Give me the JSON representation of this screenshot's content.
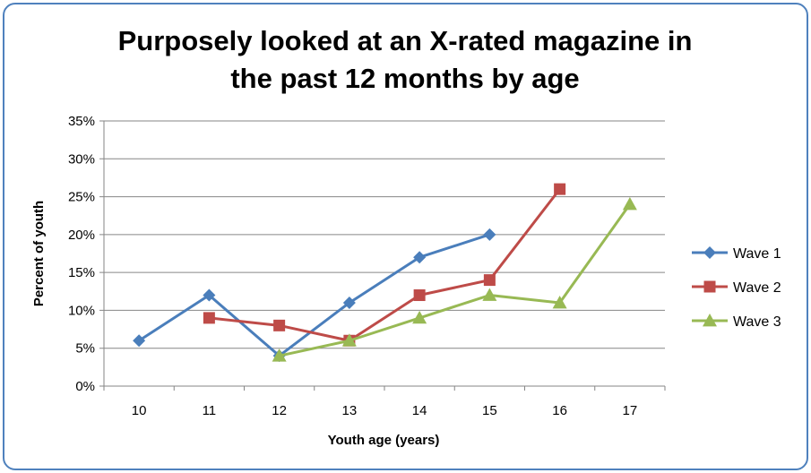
{
  "chart_data": {
    "type": "line",
    "title_lines": [
      "Purposely looked at an X-rated magazine in",
      "the past 12 months by age"
    ],
    "xlabel": "Youth age (years)",
    "ylabel": "Percent of youth",
    "categories": [
      "10",
      "11",
      "12",
      "13",
      "14",
      "15",
      "16",
      "17"
    ],
    "y_ticks": [
      "0%",
      "5%",
      "10%",
      "15%",
      "20%",
      "25%",
      "30%",
      "35%"
    ],
    "ylim": [
      0,
      35
    ],
    "grid": true,
    "legend_position": "right",
    "series": [
      {
        "name": "Wave 1",
        "color": "#4a7ebb",
        "marker": "diamond",
        "values": [
          6,
          12,
          4,
          11,
          17,
          20,
          null,
          null
        ]
      },
      {
        "name": "Wave 2",
        "color": "#be4b48",
        "marker": "square",
        "values": [
          null,
          9,
          8,
          6,
          12,
          14,
          26,
          null
        ]
      },
      {
        "name": "Wave 3",
        "color": "#98b954",
        "marker": "triangle",
        "values": [
          null,
          null,
          4,
          6,
          9,
          12,
          11,
          24
        ]
      }
    ]
  }
}
